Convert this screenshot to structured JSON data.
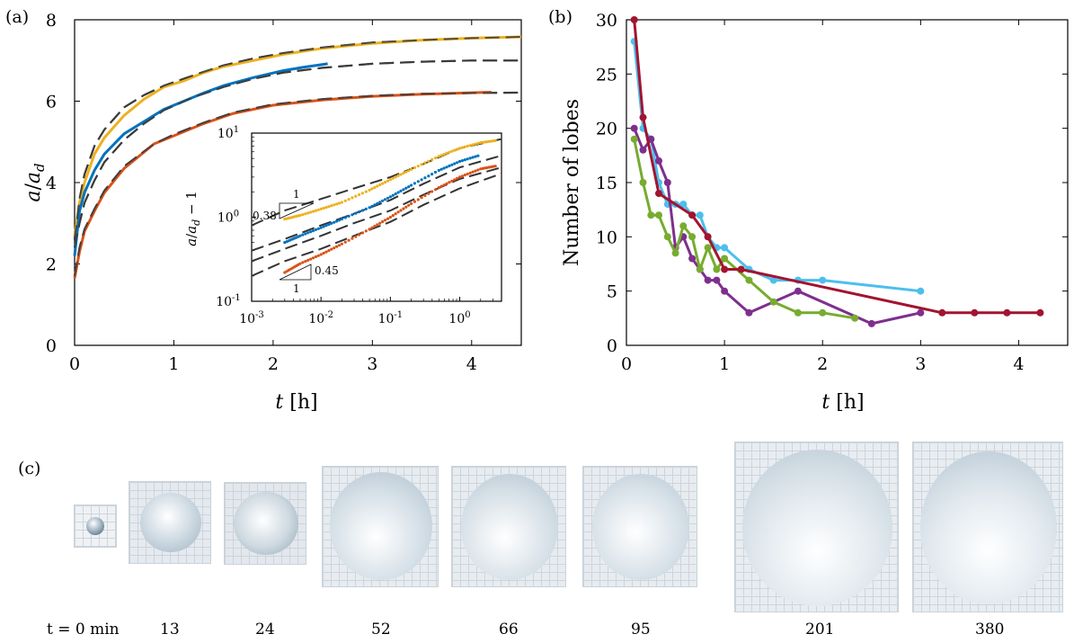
{
  "panel_labels": {
    "a": "(a)",
    "b": "(b)",
    "c": "(c)"
  },
  "chart_data": [
    {
      "type": "line",
      "panel": "(a)",
      "xlabel": "t [h]",
      "ylabel": "a/a_d",
      "xlim": [
        0,
        4.5
      ],
      "ylim": [
        0,
        8
      ],
      "xticks": [
        0,
        1,
        2,
        3,
        4
      ],
      "yticks": [
        0,
        2,
        4,
        6,
        8
      ],
      "series": [
        {
          "color": "#EDB120",
          "x": [
            0,
            0.05,
            0.1,
            0.2,
            0.3,
            0.5,
            0.7,
            0.9,
            1.1,
            1.3,
            1.5,
            1.8,
            2.1,
            2.5,
            3.0,
            3.5,
            4.0,
            4.5
          ],
          "y": [
            2.7,
            3.5,
            4.0,
            4.7,
            5.1,
            5.65,
            6.05,
            6.35,
            6.5,
            6.7,
            6.85,
            7.0,
            7.15,
            7.3,
            7.42,
            7.5,
            7.55,
            7.58
          ]
        },
        {
          "color": "#0072BD",
          "x": [
            0,
            0.05,
            0.1,
            0.2,
            0.3,
            0.5,
            0.7,
            0.9,
            1.1,
            1.3,
            1.5,
            1.8,
            2.1,
            2.3,
            2.55
          ],
          "y": [
            2.2,
            3.3,
            3.75,
            4.3,
            4.7,
            5.2,
            5.5,
            5.8,
            6.0,
            6.2,
            6.38,
            6.58,
            6.75,
            6.83,
            6.92
          ]
        },
        {
          "color": "#D95319",
          "x": [
            0,
            0.05,
            0.1,
            0.2,
            0.3,
            0.5,
            0.8,
            1.0,
            1.3,
            1.6,
            2.0,
            2.5,
            3.0,
            3.5,
            4.2
          ],
          "y": [
            1.65,
            2.3,
            2.8,
            3.3,
            3.75,
            4.35,
            4.95,
            5.15,
            5.45,
            5.7,
            5.9,
            6.03,
            6.12,
            6.17,
            6.22
          ]
        }
      ],
      "fits": [
        {
          "style": "dashed",
          "x": [
            0,
            0.05,
            0.1,
            0.2,
            0.3,
            0.5,
            0.7,
            0.9,
            1.1,
            1.3,
            1.5,
            1.8,
            2.1,
            2.5,
            3.0,
            3.5,
            4.0,
            4.5
          ],
          "y": [
            2.6,
            3.6,
            4.2,
            4.9,
            5.3,
            5.85,
            6.15,
            6.38,
            6.55,
            6.72,
            6.88,
            7.05,
            7.18,
            7.32,
            7.44,
            7.5,
            7.55,
            7.58
          ]
        },
        {
          "style": "dashed",
          "x": [
            0,
            0.05,
            0.1,
            0.2,
            0.3,
            0.5,
            0.7,
            0.9,
            1.2,
            1.5,
            1.8,
            2.1,
            2.5,
            3.0,
            3.5,
            4.0,
            4.5
          ],
          "y": [
            2.4,
            3.0,
            3.5,
            4.05,
            4.5,
            5.05,
            5.45,
            5.78,
            6.1,
            6.35,
            6.55,
            6.7,
            6.82,
            6.92,
            6.97,
            7.0,
            7.0
          ]
        },
        {
          "style": "dashed",
          "x": [
            0,
            0.05,
            0.1,
            0.2,
            0.3,
            0.5,
            0.8,
            1.0,
            1.3,
            1.6,
            2.0,
            2.5,
            3.0,
            3.5,
            4.0,
            4.5
          ],
          "y": [
            1.7,
            2.4,
            2.85,
            3.35,
            3.8,
            4.4,
            4.95,
            5.18,
            5.47,
            5.72,
            5.92,
            6.05,
            6.13,
            6.18,
            6.2,
            6.21
          ]
        }
      ]
    },
    {
      "type": "line",
      "panel": "(a) inset",
      "xlabel": "",
      "ylabel": "a/a_d − 1",
      "xscale": "log",
      "yscale": "log",
      "xlim": [
        0.001,
        4
      ],
      "ylim": [
        0.1,
        10
      ],
      "xtick_labels": [
        "10^-3",
        "10^-2",
        "10^-1",
        "10^0"
      ],
      "ytick_labels": [
        "10^-1",
        "10^0",
        "10^1"
      ],
      "slope_annotations": [
        "0.38",
        "1",
        "0.45",
        "1"
      ],
      "series": [
        {
          "color": "#EDB120",
          "x": [
            0.003,
            0.005,
            0.01,
            0.02,
            0.05,
            0.1,
            0.2,
            0.5,
            1.0,
            2.0,
            3.5
          ],
          "y": [
            0.95,
            1.05,
            1.25,
            1.5,
            2.1,
            2.8,
            3.7,
            5.3,
            6.6,
            7.7,
            8.2
          ]
        },
        {
          "color": "#0072BD",
          "x": [
            0.003,
            0.005,
            0.01,
            0.02,
            0.05,
            0.1,
            0.2,
            0.5,
            1.0,
            2.0
          ],
          "y": [
            0.5,
            0.6,
            0.75,
            0.95,
            1.3,
            1.75,
            2.4,
            3.6,
            4.6,
            5.5
          ]
        },
        {
          "color": "#D95319",
          "x": [
            0.003,
            0.005,
            0.01,
            0.02,
            0.05,
            0.1,
            0.2,
            0.5,
            1.0,
            2.0,
            3.5
          ],
          "y": [
            0.22,
            0.28,
            0.36,
            0.48,
            0.72,
            1.0,
            1.45,
            2.25,
            3.0,
            3.75,
            4.1
          ]
        }
      ],
      "fits": [
        {
          "style": "dashed",
          "x": [
            0.001,
            0.003,
            0.01,
            0.03,
            0.1,
            0.3,
            1.0,
            4.0
          ],
          "y": [
            0.8,
            1.2,
            1.65,
            2.2,
            3.0,
            4.3,
            6.6,
            8.5
          ]
        },
        {
          "style": "dashed",
          "x": [
            0.001,
            0.003,
            0.01,
            0.03,
            0.1,
            0.3,
            1.0,
            4.0
          ],
          "y": [
            0.4,
            0.55,
            0.8,
            1.1,
            1.6,
            2.5,
            3.9,
            5.4
          ]
        },
        {
          "style": "dashed",
          "x": [
            0.001,
            0.003,
            0.01,
            0.03,
            0.1,
            0.3,
            1.0,
            4.0
          ],
          "y": [
            0.3,
            0.42,
            0.6,
            0.85,
            1.2,
            1.85,
            2.85,
            3.9
          ]
        },
        {
          "style": "dashed",
          "x": [
            0.001,
            0.003,
            0.01,
            0.03,
            0.1,
            0.3,
            1.0,
            4.0
          ],
          "y": [
            0.2,
            0.3,
            0.42,
            0.6,
            0.88,
            1.4,
            2.2,
            3.3
          ]
        }
      ]
    },
    {
      "type": "line",
      "panel": "(b)",
      "xlabel": "t [h]",
      "ylabel": "Number of lobes",
      "xlim": [
        0,
        4.5
      ],
      "ylim": [
        0,
        30
      ],
      "xticks": [
        0,
        1,
        2,
        3,
        4
      ],
      "yticks": [
        0,
        5,
        10,
        15,
        20,
        25,
        30
      ],
      "series": [
        {
          "color": "#4DBEEE",
          "x": [
            0.08,
            0.17,
            0.25,
            0.33,
            0.42,
            0.5,
            0.58,
            0.67,
            0.75,
            0.83,
            0.92,
            1.0,
            1.25,
            1.5,
            1.75,
            2.0,
            3.0
          ],
          "y": [
            28,
            20,
            19,
            15,
            13,
            13,
            13,
            12,
            12,
            10,
            9,
            9,
            7,
            6,
            6,
            6,
            5
          ]
        },
        {
          "color": "#7E2F8E",
          "x": [
            0.08,
            0.17,
            0.25,
            0.33,
            0.42,
            0.5,
            0.58,
            0.67,
            0.75,
            0.83,
            0.92,
            1.0,
            1.25,
            1.75,
            2.5,
            3.0
          ],
          "y": [
            20,
            18,
            19,
            17,
            15,
            9,
            10,
            8,
            7,
            6,
            6,
            5,
            3,
            5,
            2,
            3
          ]
        },
        {
          "color": "#77AC30",
          "x": [
            0.08,
            0.17,
            0.25,
            0.33,
            0.42,
            0.5,
            0.58,
            0.67,
            0.75,
            0.83,
            0.92,
            1.0,
            1.25,
            1.5,
            1.75,
            2.0,
            2.33
          ],
          "y": [
            19,
            15,
            12,
            12,
            10,
            8.5,
            11,
            10,
            7,
            9,
            7,
            8,
            6,
            4,
            3,
            3,
            2.5
          ]
        },
        {
          "color": "#A2142F",
          "x": [
            0.08,
            0.17,
            0.33,
            0.67,
            0.83,
            1.0,
            1.17,
            3.22,
            3.55,
            3.88,
            4.22
          ],
          "y": [
            30,
            21,
            14,
            12,
            10,
            7,
            7,
            3,
            3,
            3,
            3
          ]
        }
      ]
    }
  ],
  "photos": {
    "time_labels": [
      "t = 0 min",
      "13",
      "24",
      "52",
      "66",
      "95",
      "201",
      "380"
    ]
  }
}
